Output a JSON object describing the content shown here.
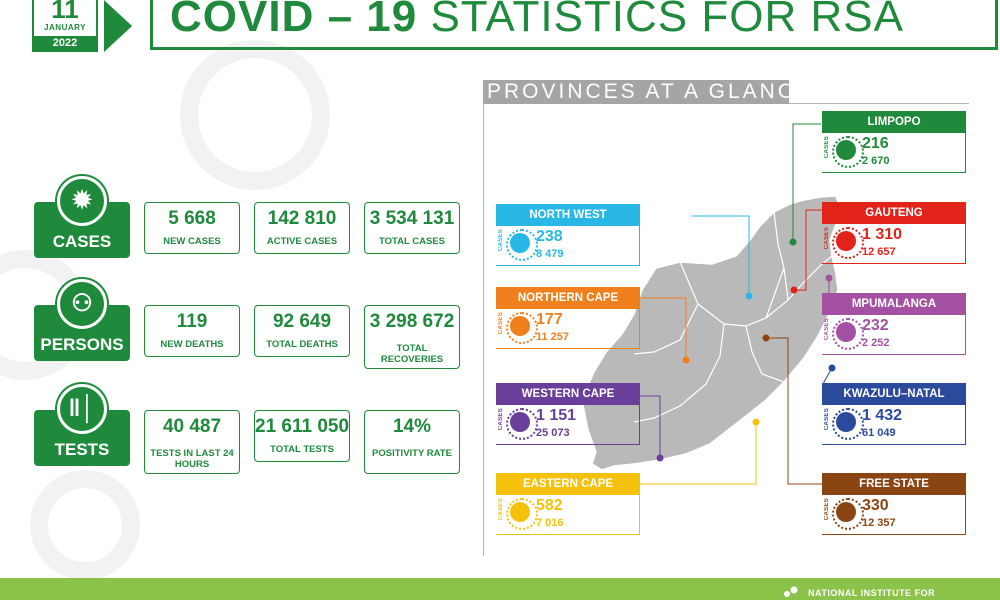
{
  "header": {
    "date_day": "11",
    "date_month": "JANUARY",
    "date_year": "2022",
    "title_bold": "COVID – 19",
    "title_light": " STATISTICS FOR RSA"
  },
  "stats": {
    "cases": {
      "category": "CASES",
      "items": [
        {
          "value": "5 668",
          "label": "NEW CASES"
        },
        {
          "value": "142 810",
          "label": "ACTIVE CASES"
        },
        {
          "value": "3 534 131",
          "label": "TOTAL CASES"
        }
      ]
    },
    "persons": {
      "category": "PERSONS",
      "items": [
        {
          "value": "119",
          "label": "NEW DEATHS"
        },
        {
          "value": "92 649",
          "label": "TOTAL DEATHS"
        },
        {
          "value": "3 298 672",
          "label": "TOTAL RECOVERIES"
        }
      ]
    },
    "tests": {
      "category": "TESTS",
      "items": [
        {
          "value": "40 487",
          "label": "TESTS IN LAST 24 HOURS"
        },
        {
          "value": "21 611 050",
          "label": "TOTAL TESTS"
        },
        {
          "value": "14%",
          "label": "POSITIVITY RATE"
        }
      ]
    }
  },
  "provinces_title": "PROVINCES AT A GLANCE",
  "cases_tag": "CASES",
  "provinces": [
    {
      "name": "LIMPOPO",
      "new": "216",
      "total": "2 670",
      "color": "#1f8a3b"
    },
    {
      "name": "GAUTENG",
      "new": "1 310",
      "total": "12 657",
      "color": "#e2231a"
    },
    {
      "name": "NORTH WEST",
      "new": "238",
      "total": "8 479",
      "color": "#29b8e5"
    },
    {
      "name": "MPUMALANGA",
      "new": "232",
      "total": "2 252",
      "color": "#a450a3"
    },
    {
      "name": "NORTHERN CAPE",
      "new": "177",
      "total": "11 257",
      "color": "#f07f1d"
    },
    {
      "name": "KWAZULU–NATAL",
      "new": "1 432",
      "total": "61 049",
      "color": "#2b4a9c"
    },
    {
      "name": "WESTERN CAPE",
      "new": "1 151",
      "total": "25 073",
      "color": "#6a3f99"
    },
    {
      "name": "EASTERN CAPE",
      "new": "582",
      "total": "7 016",
      "color": "#f4c20d"
    },
    {
      "name": "FREE STATE",
      "new": "330",
      "total": "12 357",
      "color": "#8b4513"
    }
  ],
  "footer": {
    "org": "NATIONAL INSTITUTE FOR"
  },
  "colors": {
    "brand_green": "#1f8a3b",
    "footer_green": "#8bc34a",
    "map_gray": "#b9b9b9"
  }
}
